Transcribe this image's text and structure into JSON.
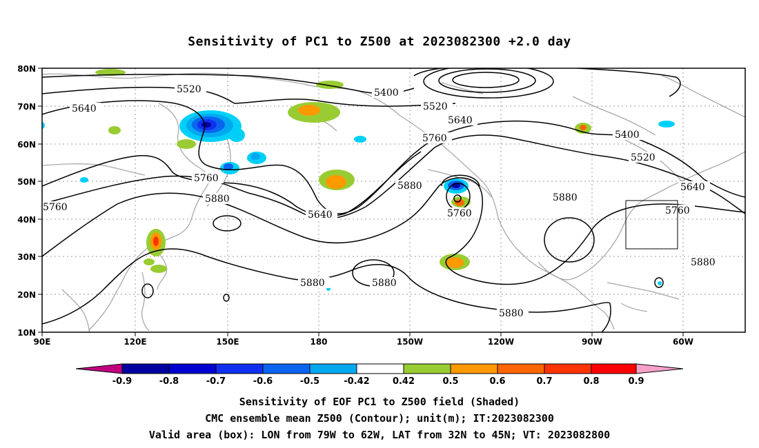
{
  "title": "Sensitivity of PC1 to Z500 at 2023082300 +2.0 day",
  "map": {
    "lat_labels": [
      "80N",
      "70N",
      "60N",
      "50N",
      "40N",
      "30N",
      "20N",
      "10N"
    ],
    "lon_labels": [
      "90E",
      "120E",
      "150E",
      "180",
      "150W",
      "120W",
      "90W",
      "60W"
    ],
    "contour_labels": [
      {
        "id": "c5520a",
        "text": "5520"
      },
      {
        "id": "c5640a",
        "text": "5640"
      },
      {
        "id": "c5400a",
        "text": "5400"
      },
      {
        "id": "c5520b",
        "text": "5520"
      },
      {
        "id": "c5640b",
        "text": "5640"
      },
      {
        "id": "c5760a",
        "text": "5760"
      },
      {
        "id": "c5400b",
        "text": "5400"
      },
      {
        "id": "c5520c",
        "text": "5520"
      },
      {
        "id": "c5640c",
        "text": "5640"
      },
      {
        "id": "c5760b",
        "text": "5760"
      },
      {
        "id": "c5760c",
        "text": "5760"
      },
      {
        "id": "c5880a",
        "text": "5880"
      },
      {
        "id": "c5640d",
        "text": "5640"
      },
      {
        "id": "c5880b",
        "text": "5880"
      },
      {
        "id": "c5760d",
        "text": "5760"
      },
      {
        "id": "c5880c",
        "text": "5880"
      },
      {
        "id": "c5760e",
        "text": "5760"
      },
      {
        "id": "c5880d",
        "text": "5880"
      },
      {
        "id": "c5880e",
        "text": "5880"
      },
      {
        "id": "c5880f",
        "text": "5880"
      },
      {
        "id": "c5880g",
        "text": "5880"
      }
    ]
  },
  "colorbar": {
    "labels": [
      "-0.9",
      "-0.8",
      "-0.7",
      "-0.6",
      "-0.5",
      "-0.42",
      "0.42",
      "0.5",
      "0.6",
      "0.7",
      "0.8",
      "0.9"
    ],
    "colors": [
      "#c0007f",
      "#0000a0",
      "#0000d0",
      "#1030f0",
      "#0a64f0",
      "#00a8f0",
      "#00d0f8",
      "#ffffff",
      "#99cc33",
      "#ff9900",
      "#ff6600",
      "#ff3300",
      "#ff0000",
      "#f4a0c8"
    ]
  },
  "captions": {
    "line1": "Sensitivity of EOF PC1 to Z500 field (Shaded)",
    "line2": "CMC ensemble mean Z500 (Contour); unit(m); IT:2023082300",
    "line3": "Valid area (box): LON from 79W to 62W, LAT from 32N to 45N; VT: 2023082800"
  }
}
